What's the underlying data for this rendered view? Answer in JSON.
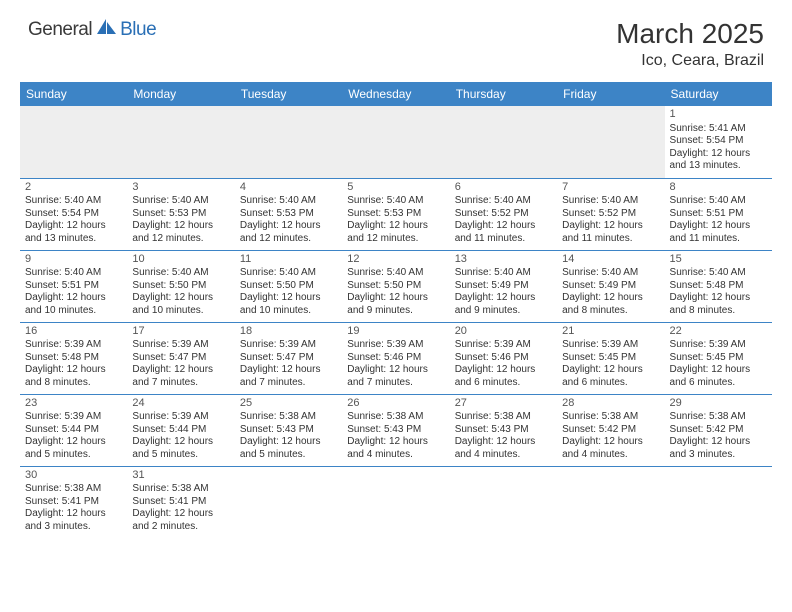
{
  "logo": {
    "part1": "General",
    "part2": "Blue"
  },
  "title": "March 2025",
  "location": "Ico, Ceara, Brazil",
  "colors": {
    "header_bg": "#3d84c6",
    "header_fg": "#ffffff",
    "rule": "#3d84c6",
    "empty_bg": "#eeeeee",
    "logo_blue": "#2a6fb5",
    "text": "#333333"
  },
  "dayHeaders": [
    "Sunday",
    "Monday",
    "Tuesday",
    "Wednesday",
    "Thursday",
    "Friday",
    "Saturday"
  ],
  "weeks": [
    [
      null,
      null,
      null,
      null,
      null,
      null,
      {
        "n": "1",
        "sr": "5:41 AM",
        "ss": "5:54 PM",
        "dl": "12 hours and 13 minutes."
      }
    ],
    [
      {
        "n": "2",
        "sr": "5:40 AM",
        "ss": "5:54 PM",
        "dl": "12 hours and 13 minutes."
      },
      {
        "n": "3",
        "sr": "5:40 AM",
        "ss": "5:53 PM",
        "dl": "12 hours and 12 minutes."
      },
      {
        "n": "4",
        "sr": "5:40 AM",
        "ss": "5:53 PM",
        "dl": "12 hours and 12 minutes."
      },
      {
        "n": "5",
        "sr": "5:40 AM",
        "ss": "5:53 PM",
        "dl": "12 hours and 12 minutes."
      },
      {
        "n": "6",
        "sr": "5:40 AM",
        "ss": "5:52 PM",
        "dl": "12 hours and 11 minutes."
      },
      {
        "n": "7",
        "sr": "5:40 AM",
        "ss": "5:52 PM",
        "dl": "12 hours and 11 minutes."
      },
      {
        "n": "8",
        "sr": "5:40 AM",
        "ss": "5:51 PM",
        "dl": "12 hours and 11 minutes."
      }
    ],
    [
      {
        "n": "9",
        "sr": "5:40 AM",
        "ss": "5:51 PM",
        "dl": "12 hours and 10 minutes."
      },
      {
        "n": "10",
        "sr": "5:40 AM",
        "ss": "5:50 PM",
        "dl": "12 hours and 10 minutes."
      },
      {
        "n": "11",
        "sr": "5:40 AM",
        "ss": "5:50 PM",
        "dl": "12 hours and 10 minutes."
      },
      {
        "n": "12",
        "sr": "5:40 AM",
        "ss": "5:50 PM",
        "dl": "12 hours and 9 minutes."
      },
      {
        "n": "13",
        "sr": "5:40 AM",
        "ss": "5:49 PM",
        "dl": "12 hours and 9 minutes."
      },
      {
        "n": "14",
        "sr": "5:40 AM",
        "ss": "5:49 PM",
        "dl": "12 hours and 8 minutes."
      },
      {
        "n": "15",
        "sr": "5:40 AM",
        "ss": "5:48 PM",
        "dl": "12 hours and 8 minutes."
      }
    ],
    [
      {
        "n": "16",
        "sr": "5:39 AM",
        "ss": "5:48 PM",
        "dl": "12 hours and 8 minutes."
      },
      {
        "n": "17",
        "sr": "5:39 AM",
        "ss": "5:47 PM",
        "dl": "12 hours and 7 minutes."
      },
      {
        "n": "18",
        "sr": "5:39 AM",
        "ss": "5:47 PM",
        "dl": "12 hours and 7 minutes."
      },
      {
        "n": "19",
        "sr": "5:39 AM",
        "ss": "5:46 PM",
        "dl": "12 hours and 7 minutes."
      },
      {
        "n": "20",
        "sr": "5:39 AM",
        "ss": "5:46 PM",
        "dl": "12 hours and 6 minutes."
      },
      {
        "n": "21",
        "sr": "5:39 AM",
        "ss": "5:45 PM",
        "dl": "12 hours and 6 minutes."
      },
      {
        "n": "22",
        "sr": "5:39 AM",
        "ss": "5:45 PM",
        "dl": "12 hours and 6 minutes."
      }
    ],
    [
      {
        "n": "23",
        "sr": "5:39 AM",
        "ss": "5:44 PM",
        "dl": "12 hours and 5 minutes."
      },
      {
        "n": "24",
        "sr": "5:39 AM",
        "ss": "5:44 PM",
        "dl": "12 hours and 5 minutes."
      },
      {
        "n": "25",
        "sr": "5:38 AM",
        "ss": "5:43 PM",
        "dl": "12 hours and 5 minutes."
      },
      {
        "n": "26",
        "sr": "5:38 AM",
        "ss": "5:43 PM",
        "dl": "12 hours and 4 minutes."
      },
      {
        "n": "27",
        "sr": "5:38 AM",
        "ss": "5:43 PM",
        "dl": "12 hours and 4 minutes."
      },
      {
        "n": "28",
        "sr": "5:38 AM",
        "ss": "5:42 PM",
        "dl": "12 hours and 4 minutes."
      },
      {
        "n": "29",
        "sr": "5:38 AM",
        "ss": "5:42 PM",
        "dl": "12 hours and 3 minutes."
      }
    ],
    [
      {
        "n": "30",
        "sr": "5:38 AM",
        "ss": "5:41 PM",
        "dl": "12 hours and 3 minutes."
      },
      {
        "n": "31",
        "sr": "5:38 AM",
        "ss": "5:41 PM",
        "dl": "12 hours and 2 minutes."
      },
      null,
      null,
      null,
      null,
      null
    ]
  ],
  "labels": {
    "sunrise": "Sunrise:",
    "sunset": "Sunset:",
    "daylight": "Daylight:"
  }
}
